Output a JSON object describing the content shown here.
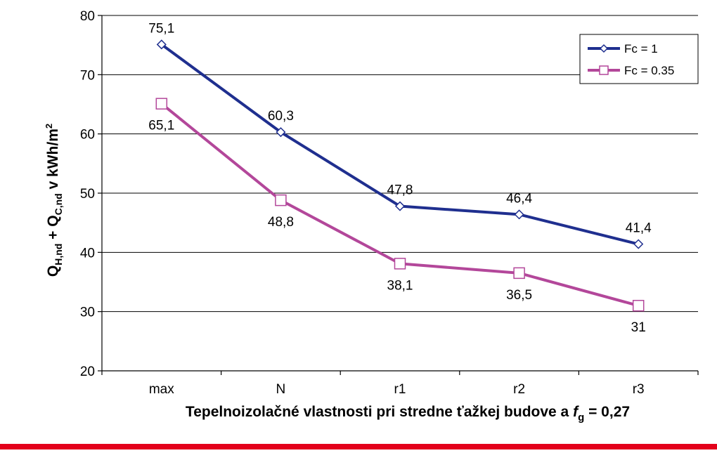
{
  "chart_data": {
    "type": "line",
    "categories": [
      "max",
      "N",
      "r1",
      "r2",
      "r3"
    ],
    "series": [
      {
        "name": "Fc = 1",
        "values": [
          75.1,
          60.3,
          47.8,
          46.4,
          41.4
        ],
        "labels": [
          "75,1",
          "60,3",
          "47,8",
          "46,4",
          "41,4"
        ],
        "color": "#1f2f8f",
        "marker": "diamond"
      },
      {
        "name": "Fc = 0.35",
        "values": [
          65.1,
          48.8,
          38.1,
          36.5,
          31
        ],
        "labels": [
          "65,1",
          "48,8",
          "38,1",
          "36,5",
          "31"
        ],
        "color": "#b3479a",
        "marker": "square"
      }
    ],
    "ylim": [
      20,
      80
    ],
    "yticks": [
      20,
      30,
      40,
      50,
      60,
      70,
      80
    ],
    "grid": true,
    "legend": "top-right",
    "ylabel": {
      "q1": "Q",
      "q1_sub": "H,nd",
      "plus": " + Q",
      "q2_sub": "C,nd",
      "tail": " v kWh/m",
      "sup": "2"
    },
    "xlabel": {
      "text": "Tepelnoizolačné vlastnosti pri stredne ťažkej budove a ",
      "var": "f",
      "var_sub": "g",
      "tail": " = 0,27"
    }
  },
  "footer_bar_color": "#e3001b"
}
